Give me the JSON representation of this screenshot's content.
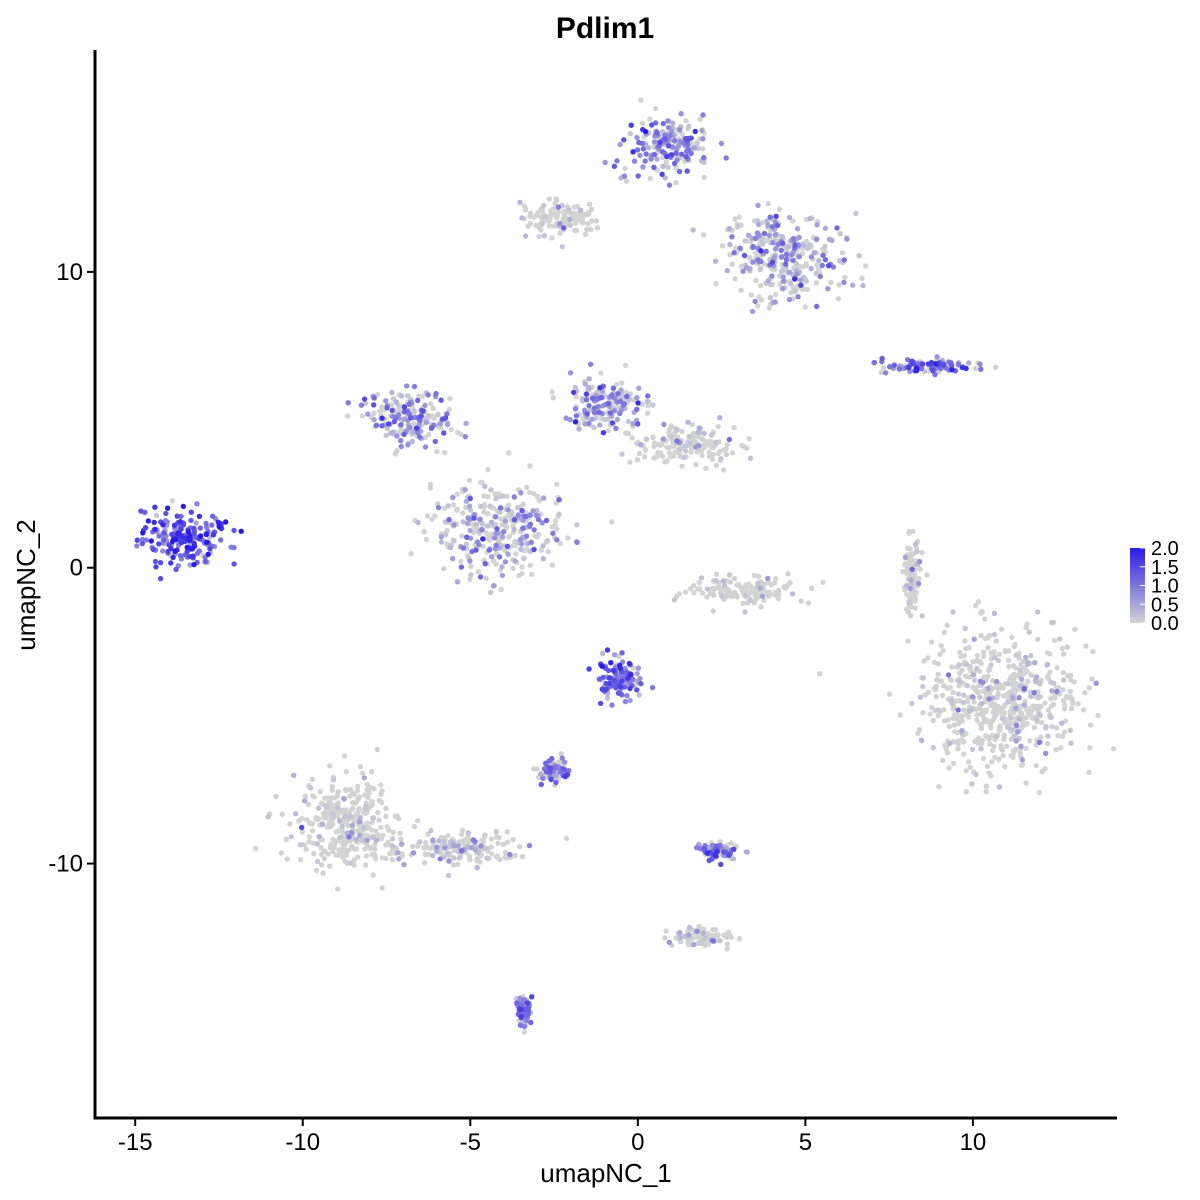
{
  "chart_data": {
    "type": "scatter",
    "title": "Pdlim1",
    "xlabel": "umapNC_1",
    "ylabel": "umapNC_2",
    "xlim": [
      -16.2,
      14.3
    ],
    "ylim": [
      -18.6,
      17.5
    ],
    "x_ticks": [
      -15,
      -10,
      -5,
      0,
      5,
      10
    ],
    "x_tick_labels": [
      "-15",
      "-10",
      "-5",
      "0",
      "5",
      "10"
    ],
    "y_ticks": [
      -10,
      0,
      10
    ],
    "y_tick_labels": [
      "-10",
      "0",
      "10"
    ],
    "grid": false,
    "legend_position": "right",
    "color_low": "#d3d3d3",
    "color_high": "#2a1ae8",
    "colorbar": {
      "min": 0.0,
      "max": 2.0,
      "ticks": [
        2.0,
        1.5,
        1.0,
        0.5,
        0.0
      ],
      "tick_labels": [
        "2.0",
        "1.5",
        "1.0",
        "0.5",
        "0.0"
      ]
    },
    "clusters": [
      {
        "name": "left-cluster",
        "center": [
          -13.5,
          1.1
        ],
        "spread": [
          0.9,
          0.55
        ],
        "mean_expression": 1.25
      },
      {
        "name": "bottom-left-cluster",
        "center": [
          -8.7,
          -8.6
        ],
        "spread": [
          1.0,
          1.0
        ],
        "mean_expression": 0.1
      },
      {
        "name": "bottom-left-tail",
        "center": [
          -5.5,
          -9.5
        ],
        "spread": [
          1.2,
          0.35
        ],
        "mean_expression": 0.3
      },
      {
        "name": "top-center-cluster",
        "center": [
          0.9,
          14.2
        ],
        "spread": [
          0.8,
          0.6
        ],
        "mean_expression": 0.85
      },
      {
        "name": "top-center-arm",
        "center": [
          4.3,
          10.5
        ],
        "spread": [
          1.1,
          0.9
        ],
        "mean_expression": 0.6
      },
      {
        "name": "top-left-arm",
        "center": [
          -2.3,
          11.8
        ],
        "spread": [
          0.8,
          0.35
        ],
        "mean_expression": 0.15
      },
      {
        "name": "middle-center-cluster",
        "center": [
          -4.2,
          1.3
        ],
        "spread": [
          1.2,
          0.9
        ],
        "mean_expression": 0.5
      },
      {
        "name": "middle-upper-left-arm",
        "center": [
          -6.7,
          5.0
        ],
        "spread": [
          0.8,
          0.6
        ],
        "mean_expression": 0.75
      },
      {
        "name": "middle-upper-right-arm",
        "center": [
          -1.0,
          5.5
        ],
        "spread": [
          0.7,
          0.6
        ],
        "mean_expression": 0.7
      },
      {
        "name": "middle-right-arm",
        "center": [
          1.5,
          4.2
        ],
        "spread": [
          0.9,
          0.4
        ],
        "mean_expression": 0.2
      },
      {
        "name": "crescent-cluster",
        "center": [
          3.3,
          -0.8
        ],
        "spread": [
          1.0,
          0.3
        ],
        "mean_expression": 0.05
      },
      {
        "name": "right-small-cluster",
        "center": [
          8.8,
          6.8
        ],
        "spread": [
          0.9,
          0.15
        ],
        "mean_expression": 1.0
      },
      {
        "name": "bottom-right-cluster",
        "center": [
          10.8,
          -4.5
        ],
        "spread": [
          1.4,
          1.5
        ],
        "mean_expression": 0.15
      },
      {
        "name": "center-bottom-cluster",
        "center": [
          -0.5,
          -3.8
        ],
        "spread": [
          0.45,
          0.45
        ],
        "mean_expression": 1.1
      },
      {
        "name": "small-cluster-a",
        "center": [
          2.5,
          -9.6
        ],
        "spread": [
          0.35,
          0.2
        ],
        "mean_expression": 0.9
      },
      {
        "name": "small-cluster-b",
        "center": [
          -2.5,
          -6.9
        ],
        "spread": [
          0.3,
          0.2
        ],
        "mean_expression": 0.8
      },
      {
        "name": "small-cluster-c",
        "center": [
          -3.4,
          -14.9
        ],
        "spread": [
          0.15,
          0.35
        ],
        "mean_expression": 0.85
      },
      {
        "name": "small-cluster-d",
        "center": [
          8.2,
          -0.3
        ],
        "spread": [
          0.15,
          0.8
        ],
        "mean_expression": 0.1
      },
      {
        "name": "small-cluster-e",
        "center": [
          1.8,
          -12.5
        ],
        "spread": [
          0.6,
          0.2
        ],
        "mean_expression": 0.2
      }
    ]
  }
}
